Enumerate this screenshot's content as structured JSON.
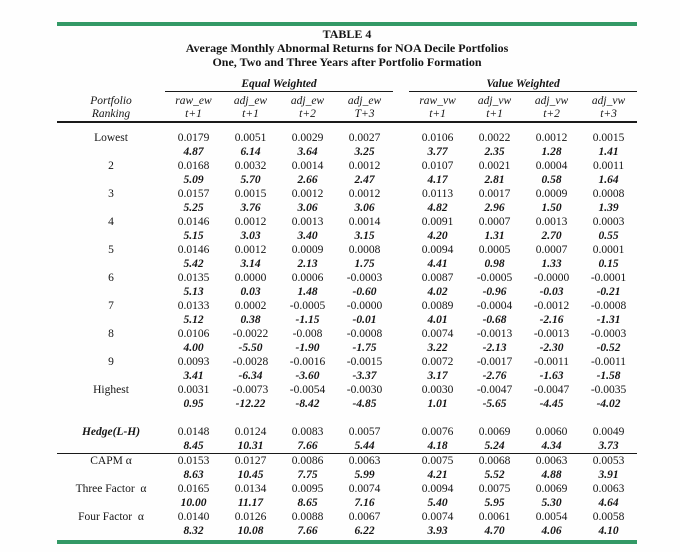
{
  "colors": {
    "accent_bar": "#339966",
    "rule": "#1a1a1a"
  },
  "title": {
    "table_number": "TABLE 4",
    "line2": "Average Monthly Abnormal Returns for NOA Decile Portfolios",
    "line3": "One, Two and Three Years after Portfolio Formation"
  },
  "table": {
    "stub_header": [
      "Portfolio",
      "Ranking"
    ],
    "groups": [
      {
        "label": "Equal Weighted",
        "columns": [
          {
            "name": "raw_ew",
            "period": "t+1"
          },
          {
            "name": "adj_ew",
            "period": "t+1"
          },
          {
            "name": "adj_ew",
            "period": "t+2"
          },
          {
            "name": "adj_ew",
            "period": "T+3"
          }
        ]
      },
      {
        "label": "Value Weighted",
        "columns": [
          {
            "name": "raw_vw",
            "period": "t+1"
          },
          {
            "name": "adj_vw",
            "period": "t+1"
          },
          {
            "name": "adj_vw",
            "period": "t+2"
          },
          {
            "name": "adj_vw",
            "period": "t+3"
          }
        ]
      }
    ],
    "rows": [
      {
        "label": "Lowest",
        "values": [
          "0.0179",
          "0.0051",
          "0.0029",
          "0.0027",
          "0.0106",
          "0.0022",
          "0.0012",
          "0.0015"
        ],
        "tstats": [
          "4.87",
          "6.14",
          "3.64",
          "3.25",
          "3.77",
          "2.35",
          "1.28",
          "1.41"
        ]
      },
      {
        "label": "2",
        "values": [
          "0.0168",
          "0.0032",
          "0.0014",
          "0.0012",
          "0.0107",
          "0.0021",
          "0.0004",
          "0.0011"
        ],
        "tstats": [
          "5.09",
          "5.70",
          "2.66",
          "2.47",
          "4.17",
          "2.81",
          "0.58",
          "1.64"
        ]
      },
      {
        "label": "3",
        "values": [
          "0.0157",
          "0.0015",
          "0.0012",
          "0.0012",
          "0.0113",
          "0.0017",
          "0.0009",
          "0.0008"
        ],
        "tstats": [
          "5.25",
          "3.76",
          "3.06",
          "3.06",
          "4.82",
          "2.96",
          "1.50",
          "1.39"
        ]
      },
      {
        "label": "4",
        "values": [
          "0.0146",
          "0.0012",
          "0.0013",
          "0.0014",
          "0.0091",
          "0.0007",
          "0.0013",
          "0.0003"
        ],
        "tstats": [
          "5.15",
          "3.03",
          "3.40",
          "3.15",
          "4.20",
          "1.31",
          "2.70",
          "0.55"
        ]
      },
      {
        "label": "5",
        "values": [
          "0.0146",
          "0.0012",
          "0.0009",
          "0.0008",
          "0.0094",
          "0.0005",
          "0.0007",
          "0.0001"
        ],
        "tstats": [
          "5.42",
          "3.14",
          "2.13",
          "1.75",
          "4.41",
          "0.98",
          "1.33",
          "0.15"
        ]
      },
      {
        "label": "6",
        "values": [
          "0.0135",
          "0.0000",
          "0.0006",
          "-0.0003",
          "0.0087",
          "-0.0005",
          "-0.0000",
          "-0.0001"
        ],
        "tstats": [
          "5.13",
          "0.03",
          "1.48",
          "-0.60",
          "4.02",
          "-0.96",
          "-0.03",
          "-0.21"
        ]
      },
      {
        "label": "7",
        "values": [
          "0.0133",
          "0.0002",
          "-0.0005",
          "-0.0000",
          "0.0089",
          "-0.0004",
          "-0.0012",
          "-0.0008"
        ],
        "tstats": [
          "5.12",
          "0.38",
          "-1.15",
          "-0.01",
          "4.01",
          "-0.68",
          "-2.16",
          "-1.31"
        ]
      },
      {
        "label": "8",
        "values": [
          "0.0106",
          "-0.0022",
          "-0.008",
          "-0.0008",
          "0.0074",
          "-0.0013",
          "-0.0013",
          "-0.0003"
        ],
        "tstats": [
          "4.00",
          "-5.50",
          "-1.90",
          "-1.75",
          "3.22",
          "-2.13",
          "-2.30",
          "-0.52"
        ]
      },
      {
        "label": "9",
        "values": [
          "0.0093",
          "-0.0028",
          "-0.0016",
          "-0.0015",
          "0.0072",
          "-0.0017",
          "-0.0011",
          "-0.0011"
        ],
        "tstats": [
          "3.41",
          "-6.34",
          "-3.60",
          "-3.37",
          "3.17",
          "-2.76",
          "-1.63",
          "-1.58"
        ]
      },
      {
        "label": "Highest",
        "values": [
          "0.0031",
          "-0.0073",
          "-0.0054",
          "-0.0030",
          "0.0030",
          "-0.0047",
          "-0.0047",
          "-0.0035"
        ],
        "tstats": [
          "0.95",
          "-12.22",
          "-8.42",
          "-4.85",
          "1.01",
          "-5.65",
          "-4.45",
          "-4.02"
        ]
      }
    ],
    "hedge": {
      "label": "Hedge(L-H)",
      "values": [
        "0.0148",
        "0.0124",
        "0.0083",
        "0.0057",
        "0.0076",
        "0.0069",
        "0.0060",
        "0.0049"
      ],
      "tstats": [
        "8.45",
        "10.31",
        "7.66",
        "5.44",
        "4.18",
        "5.24",
        "4.34",
        "3.73"
      ]
    },
    "factors": [
      {
        "label": "CAPM α",
        "values": [
          "0.0153",
          "0.0127",
          "0.0086",
          "0.0063",
          "0.0075",
          "0.0068",
          "0.0063",
          "0.0053"
        ],
        "tstats": [
          "8.63",
          "10.45",
          "7.75",
          "5.99",
          "4.21",
          "5.52",
          "4.88",
          "3.91"
        ]
      },
      {
        "label": "Three Factor  α",
        "values": [
          "0.0165",
          "0.0134",
          "0.0095",
          "0.0074",
          "0.0094",
          "0.0075",
          "0.0069",
          "0.0063"
        ],
        "tstats": [
          "10.00",
          "11.17",
          "8.65",
          "7.16",
          "5.40",
          "5.95",
          "5.30",
          "4.64"
        ]
      },
      {
        "label": "Four Factor  α",
        "values": [
          "0.0140",
          "0.0126",
          "0.0088",
          "0.0067",
          "0.0074",
          "0.0061",
          "0.0054",
          "0.0058"
        ],
        "tstats": [
          "8.32",
          "10.08",
          "7.66",
          "6.22",
          "3.93",
          "4.70",
          "4.06",
          "4.10"
        ]
      }
    ]
  }
}
